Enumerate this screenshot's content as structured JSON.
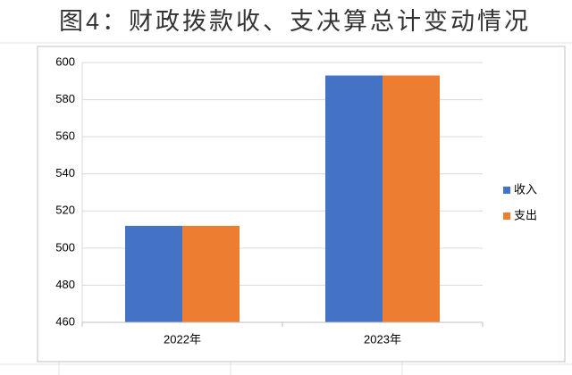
{
  "chart_data": {
    "type": "bar",
    "title": "图4：财政拨款收、支决算总计变动情况",
    "categories": [
      "2022年",
      "2023年"
    ],
    "series": [
      {
        "name": "收入",
        "color": "#4472c4",
        "values": [
          512,
          593
        ]
      },
      {
        "name": "支出",
        "color": "#ed7d31",
        "values": [
          512,
          593
        ]
      }
    ],
    "ylim": [
      460,
      600
    ],
    "yticks": [
      460,
      480,
      500,
      520,
      540,
      560,
      580,
      600
    ],
    "grid": true,
    "legend": "right"
  }
}
